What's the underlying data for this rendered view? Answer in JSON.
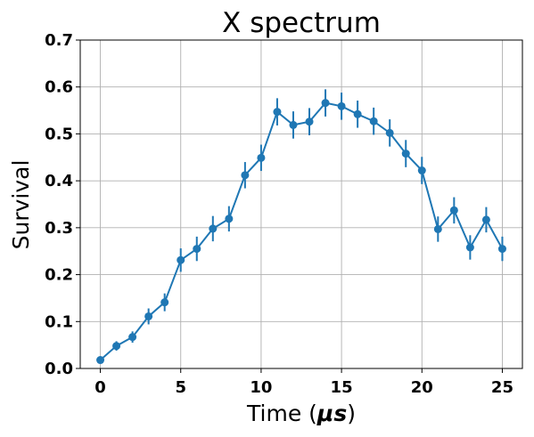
{
  "chart_data": {
    "type": "line",
    "title": "X spectrum",
    "xlabel": "Time (",
    "xlabel_unit": "μs",
    "xlabel_close": ")",
    "ylabel": "Survival",
    "xlim": [
      -1.25,
      26.25
    ],
    "ylim": [
      0.0,
      0.7
    ],
    "xticks": [
      0,
      5,
      10,
      15,
      20,
      25
    ],
    "xtick_labels": [
      "0",
      "5",
      "10",
      "15",
      "20",
      "25"
    ],
    "yticks": [
      0.0,
      0.1,
      0.2,
      0.3,
      0.4,
      0.5,
      0.6,
      0.7
    ],
    "ytick_labels": [
      "0.0",
      "0.1",
      "0.2",
      "0.3",
      "0.4",
      "0.5",
      "0.6",
      "0.7"
    ],
    "grid": true,
    "color": "#1f77b4",
    "series": [
      {
        "x": [
          0,
          1,
          2,
          3,
          4,
          5,
          6,
          7,
          8,
          9,
          10,
          11,
          12,
          13,
          14,
          15,
          16,
          17,
          18,
          19,
          20,
          21,
          22,
          23,
          24,
          25
        ],
        "y": [
          0.018,
          0.048,
          0.067,
          0.111,
          0.141,
          0.231,
          0.255,
          0.298,
          0.319,
          0.412,
          0.449,
          0.547,
          0.519,
          0.526,
          0.566,
          0.559,
          0.542,
          0.527,
          0.502,
          0.458,
          0.422,
          0.297,
          0.337,
          0.258,
          0.317,
          0.255
        ],
        "yerr": [
          0.006,
          0.01,
          0.012,
          0.017,
          0.019,
          0.025,
          0.026,
          0.027,
          0.027,
          0.028,
          0.028,
          0.029,
          0.029,
          0.029,
          0.029,
          0.029,
          0.029,
          0.029,
          0.029,
          0.029,
          0.029,
          0.027,
          0.028,
          0.026,
          0.027,
          0.026
        ]
      }
    ]
  }
}
